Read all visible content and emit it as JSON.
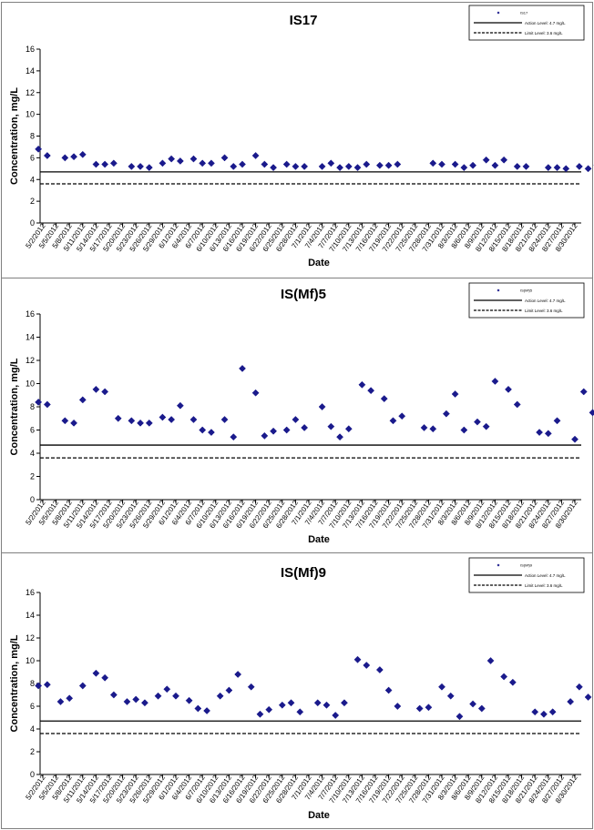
{
  "x_ticks": [
    "5/2/2012",
    "5/5/2012",
    "5/8/2012",
    "5/11/2012",
    "5/14/2012",
    "5/17/2012",
    "5/20/2012",
    "5/23/2012",
    "5/26/2012",
    "5/29/2012",
    "6/1/2012",
    "6/4/2012",
    "6/7/2012",
    "6/10/2012",
    "6/13/2012",
    "6/16/2012",
    "6/19/2012",
    "6/22/2012",
    "6/25/2012",
    "6/28/2012",
    "7/1/2012",
    "7/4/2012",
    "7/7/2012",
    "7/10/2012",
    "7/13/2012",
    "7/16/2012",
    "7/19/2012",
    "7/22/2012",
    "7/25/2012",
    "7/28/2012",
    "7/31/2012",
    "8/3/2012",
    "8/6/2012",
    "8/9/2012",
    "8/12/2012",
    "8/15/2012",
    "8/18/2012",
    "8/21/2012",
    "8/24/2012",
    "8/27/2012",
    "8/30/2012"
  ],
  "colors": {
    "marker": "#1a1a8c",
    "axis": "#000000",
    "frame": "#808080"
  },
  "chart_data": [
    {
      "type": "scatter",
      "title": "IS17",
      "xlabel": "Date",
      "ylabel": "Concentration, mg/L",
      "ylim": [
        0,
        16
      ],
      "yticks": [
        0,
        2,
        4,
        6,
        8,
        10,
        12,
        14,
        16
      ],
      "grid": false,
      "legend_position": "top-right",
      "series": [
        {
          "name": "IS17",
          "marker": "diamond",
          "points": [
            [
              "5/1/2012",
              6.8
            ],
            [
              "5/3/2012",
              6.2
            ],
            [
              "5/7/2012",
              6.0
            ],
            [
              "5/9/2012",
              6.1
            ],
            [
              "5/11/2012",
              6.3
            ],
            [
              "5/14/2012",
              5.4
            ],
            [
              "5/16/2012",
              5.4
            ],
            [
              "5/18/2012",
              5.5
            ],
            [
              "5/22/2012",
              5.2
            ],
            [
              "5/24/2012",
              5.2
            ],
            [
              "5/26/2012",
              5.1
            ],
            [
              "5/29/2012",
              5.5
            ],
            [
              "5/31/2012",
              5.9
            ],
            [
              "6/2/2012",
              5.7
            ],
            [
              "6/5/2012",
              5.9
            ],
            [
              "6/7/2012",
              5.5
            ],
            [
              "6/9/2012",
              5.5
            ],
            [
              "6/12/2012",
              6.0
            ],
            [
              "6/14/2012",
              5.2
            ],
            [
              "6/16/2012",
              5.4
            ],
            [
              "6/19/2012",
              6.2
            ],
            [
              "6/21/2012",
              5.4
            ],
            [
              "6/23/2012",
              5.1
            ],
            [
              "6/26/2012",
              5.4
            ],
            [
              "6/28/2012",
              5.2
            ],
            [
              "6/30/2012",
              5.2
            ],
            [
              "7/4/2012",
              5.2
            ],
            [
              "7/6/2012",
              5.5
            ],
            [
              "7/8/2012",
              5.1
            ],
            [
              "7/10/2012",
              5.2
            ],
            [
              "7/12/2012",
              5.1
            ],
            [
              "7/14/2012",
              5.4
            ],
            [
              "7/17/2012",
              5.3
            ],
            [
              "7/19/2012",
              5.3
            ],
            [
              "7/21/2012",
              5.4
            ],
            [
              "7/29/2012",
              5.5
            ],
            [
              "7/31/2012",
              5.4
            ],
            [
              "8/3/2012",
              5.4
            ],
            [
              "8/5/2012",
              5.1
            ],
            [
              "8/7/2012",
              5.3
            ],
            [
              "8/10/2012",
              5.8
            ],
            [
              "8/12/2012",
              5.3
            ],
            [
              "8/14/2012",
              5.8
            ],
            [
              "8/17/2012",
              5.2
            ],
            [
              "8/19/2012",
              5.2
            ],
            [
              "8/24/2012",
              5.1
            ],
            [
              "8/26/2012",
              5.1
            ],
            [
              "8/28/2012",
              5.0
            ],
            [
              "8/31/2012",
              5.2
            ],
            [
              "9/2/2012",
              5.0
            ],
            [
              "9/4/2012",
              5.3
            ]
          ]
        },
        {
          "name": "Action Level: 4.7 mg/L",
          "line_style": "solid",
          "value": 4.7
        },
        {
          "name": "Limit Level: 3.6 mg/L",
          "line_style": "dashed",
          "value": 3.6
        }
      ]
    },
    {
      "type": "scatter",
      "title": "IS(Mf)5",
      "xlabel": "Date",
      "ylabel": "Concentration, mg/L",
      "ylim": [
        0,
        16
      ],
      "yticks": [
        0,
        2,
        4,
        6,
        8,
        10,
        12,
        14,
        16
      ],
      "grid": false,
      "legend_position": "top-right",
      "series": [
        {
          "name": "IS(Mf)5",
          "marker": "diamond",
          "points": [
            [
              "5/1/2012",
              8.4
            ],
            [
              "5/3/2012",
              8.2
            ],
            [
              "5/7/2012",
              6.8
            ],
            [
              "5/9/2012",
              6.6
            ],
            [
              "5/11/2012",
              8.6
            ],
            [
              "5/14/2012",
              9.5
            ],
            [
              "5/16/2012",
              9.3
            ],
            [
              "5/19/2012",
              7.0
            ],
            [
              "5/22/2012",
              6.8
            ],
            [
              "5/24/2012",
              6.6
            ],
            [
              "5/26/2012",
              6.6
            ],
            [
              "5/29/2012",
              7.1
            ],
            [
              "5/31/2012",
              6.9
            ],
            [
              "6/2/2012",
              8.1
            ],
            [
              "6/5/2012",
              6.9
            ],
            [
              "6/7/2012",
              6.0
            ],
            [
              "6/9/2012",
              5.8
            ],
            [
              "6/12/2012",
              6.9
            ],
            [
              "6/14/2012",
              5.4
            ],
            [
              "6/16/2012",
              11.3
            ],
            [
              "6/19/2012",
              9.2
            ],
            [
              "6/21/2012",
              5.5
            ],
            [
              "6/23/2012",
              5.9
            ],
            [
              "6/26/2012",
              6.0
            ],
            [
              "6/28/2012",
              6.9
            ],
            [
              "6/30/2012",
              6.2
            ],
            [
              "7/4/2012",
              8.0
            ],
            [
              "7/6/2012",
              6.3
            ],
            [
              "7/8/2012",
              5.4
            ],
            [
              "7/10/2012",
              6.1
            ],
            [
              "7/13/2012",
              9.9
            ],
            [
              "7/15/2012",
              9.4
            ],
            [
              "7/18/2012",
              8.7
            ],
            [
              "7/20/2012",
              6.8
            ],
            [
              "7/22/2012",
              7.2
            ],
            [
              "7/27/2012",
              6.2
            ],
            [
              "7/29/2012",
              6.1
            ],
            [
              "8/1/2012",
              7.4
            ],
            [
              "8/3/2012",
              9.1
            ],
            [
              "8/5/2012",
              6.0
            ],
            [
              "8/8/2012",
              6.7
            ],
            [
              "8/10/2012",
              6.3
            ],
            [
              "8/12/2012",
              10.2
            ],
            [
              "8/15/2012",
              9.5
            ],
            [
              "8/17/2012",
              8.2
            ],
            [
              "8/22/2012",
              5.8
            ],
            [
              "8/24/2012",
              5.7
            ],
            [
              "8/26/2012",
              6.8
            ],
            [
              "8/30/2012",
              5.2
            ],
            [
              "9/1/2012",
              9.3
            ],
            [
              "9/3/2012",
              7.5
            ]
          ]
        },
        {
          "name": "Action Level: 4.7 mg/L",
          "line_style": "solid",
          "value": 4.7
        },
        {
          "name": "Limit Level: 3.6 mg/L",
          "line_style": "dashed",
          "value": 3.6
        }
      ]
    },
    {
      "type": "scatter",
      "title": "IS(Mf)9",
      "xlabel": "Date",
      "ylabel": "Concentration, mg/L",
      "ylim": [
        0,
        16
      ],
      "yticks": [
        0,
        2,
        4,
        6,
        8,
        10,
        12,
        14,
        16
      ],
      "grid": false,
      "legend_position": "top-right",
      "series": [
        {
          "name": "IS(Mf)9",
          "marker": "diamond",
          "points": [
            [
              "5/1/2012",
              7.8
            ],
            [
              "5/3/2012",
              7.9
            ],
            [
              "5/6/2012",
              6.4
            ],
            [
              "5/8/2012",
              6.7
            ],
            [
              "5/11/2012",
              7.8
            ],
            [
              "5/14/2012",
              8.9
            ],
            [
              "5/16/2012",
              8.5
            ],
            [
              "5/18/2012",
              7.0
            ],
            [
              "5/21/2012",
              6.4
            ],
            [
              "5/23/2012",
              6.6
            ],
            [
              "5/25/2012",
              6.3
            ],
            [
              "5/28/2012",
              6.9
            ],
            [
              "5/30/2012",
              7.5
            ],
            [
              "6/1/2012",
              6.9
            ],
            [
              "6/4/2012",
              6.5
            ],
            [
              "6/6/2012",
              5.8
            ],
            [
              "6/8/2012",
              5.6
            ],
            [
              "6/11/2012",
              6.9
            ],
            [
              "6/13/2012",
              7.4
            ],
            [
              "6/15/2012",
              8.8
            ],
            [
              "6/18/2012",
              7.7
            ],
            [
              "6/20/2012",
              5.3
            ],
            [
              "6/22/2012",
              5.7
            ],
            [
              "6/25/2012",
              6.1
            ],
            [
              "6/27/2012",
              6.3
            ],
            [
              "6/29/2012",
              5.5
            ],
            [
              "7/3/2012",
              6.3
            ],
            [
              "7/5/2012",
              6.1
            ],
            [
              "7/7/2012",
              5.2
            ],
            [
              "7/9/2012",
              6.3
            ],
            [
              "7/12/2012",
              10.1
            ],
            [
              "7/14/2012",
              9.6
            ],
            [
              "7/17/2012",
              9.2
            ],
            [
              "7/19/2012",
              7.4
            ],
            [
              "7/21/2012",
              6.0
            ],
            [
              "7/26/2012",
              5.8
            ],
            [
              "7/28/2012",
              5.9
            ],
            [
              "7/31/2012",
              7.7
            ],
            [
              "8/2/2012",
              6.9
            ],
            [
              "8/4/2012",
              5.1
            ],
            [
              "8/7/2012",
              6.2
            ],
            [
              "8/9/2012",
              5.8
            ],
            [
              "8/11/2012",
              10.0
            ],
            [
              "8/14/2012",
              8.6
            ],
            [
              "8/16/2012",
              8.1
            ],
            [
              "8/21/2012",
              5.5
            ],
            [
              "8/23/2012",
              5.3
            ],
            [
              "8/25/2012",
              5.5
            ],
            [
              "8/29/2012",
              6.4
            ],
            [
              "8/31/2012",
              7.7
            ],
            [
              "9/2/2012",
              6.8
            ]
          ]
        },
        {
          "name": "Action Level: 4.7 mg/L",
          "line_style": "solid",
          "value": 4.7
        },
        {
          "name": "Limit Level: 3.6 mg/L",
          "line_style": "dashed",
          "value": 3.6
        }
      ]
    }
  ]
}
